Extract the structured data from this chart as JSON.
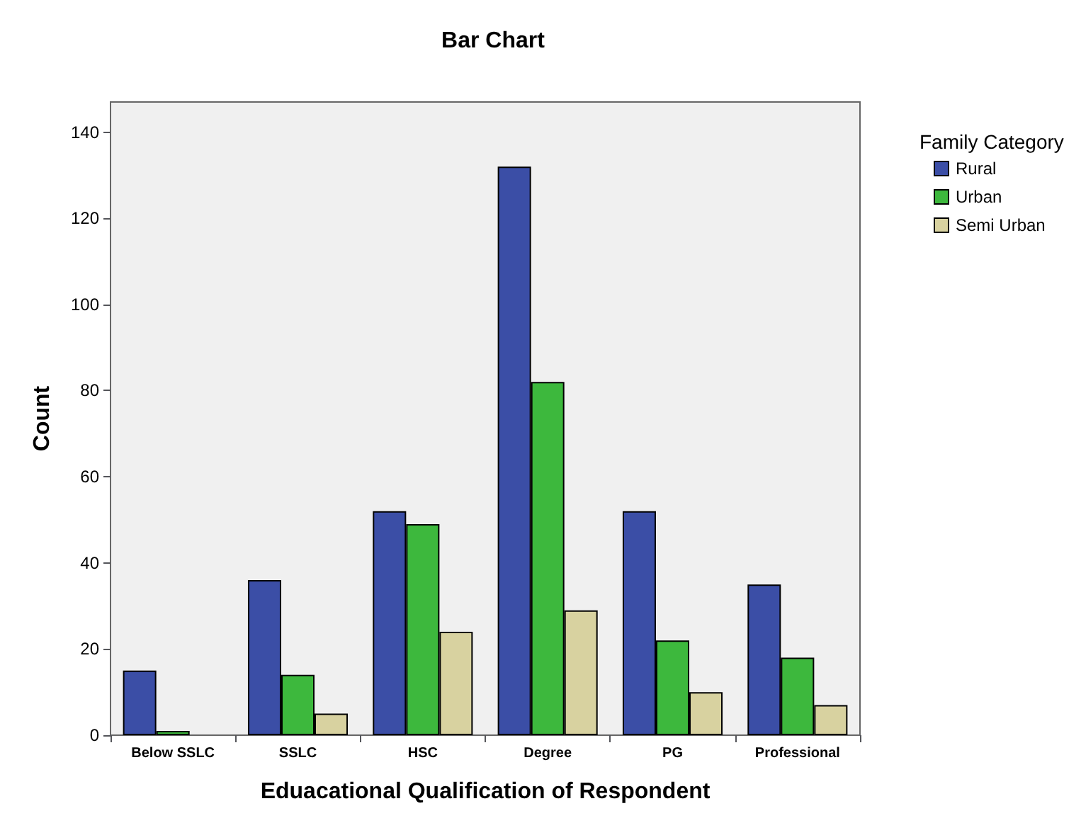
{
  "chart_data": {
    "type": "bar",
    "title": "Bar Chart",
    "xlabel": "Eduacational Qualification of Respondent",
    "ylabel": "Count",
    "legend_title": "Family Category",
    "categories": [
      "Below SSLC",
      "SSLC",
      "HSC",
      "Degree",
      "PG",
      "Professional"
    ],
    "series": [
      {
        "name": "Rural",
        "color": "#3b4ea6",
        "values": [
          15,
          36,
          52,
          132,
          52,
          35
        ]
      },
      {
        "name": "Urban",
        "color": "#3db83d",
        "values": [
          1,
          14,
          49,
          82,
          22,
          18
        ]
      },
      {
        "name": "Semi Urban",
        "color": "#d8d2a0",
        "values": [
          0,
          5,
          24,
          29,
          10,
          7
        ]
      }
    ],
    "ylim": [
      0,
      147
    ],
    "yticks": [
      0,
      20,
      40,
      60,
      80,
      100,
      120,
      140
    ],
    "grid": false,
    "legend": "right"
  }
}
